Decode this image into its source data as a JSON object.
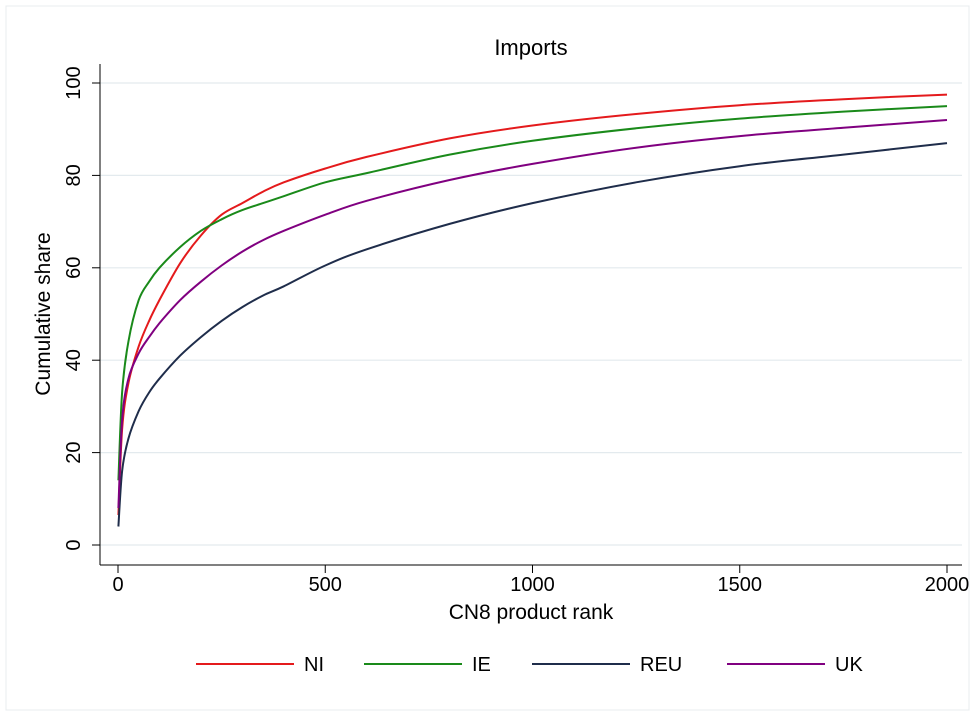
{
  "chart_data": {
    "type": "line",
    "title": "Imports",
    "xlabel": "CN8 product rank",
    "ylabel": "Cumulative share",
    "xlim": [
      0,
      2000
    ],
    "ylim": [
      0,
      100
    ],
    "xticks": [
      0,
      500,
      1000,
      1500,
      2000
    ],
    "yticks": [
      0,
      20,
      40,
      60,
      80,
      100
    ],
    "grid": "horizontal",
    "legend_position": "bottom",
    "x": [
      1,
      10,
      25,
      50,
      75,
      100,
      150,
      200,
      250,
      300,
      350,
      400,
      500,
      600,
      800,
      1000,
      1250,
      1500,
      1750,
      2000
    ],
    "series": [
      {
        "name": "NI",
        "color": "#e41a1c",
        "values": [
          6.5,
          25,
          35,
          43,
          48.5,
          53,
          61,
          67,
          71.5,
          74,
          76.5,
          78.5,
          81.5,
          84,
          88,
          90.8,
          93.3,
          95.2,
          96.5,
          97.5
        ]
      },
      {
        "name": "IE",
        "color": "#1a8a1a",
        "values": [
          14,
          33,
          44,
          53,
          57,
          60,
          64.5,
          68,
          70.5,
          72.5,
          74,
          75.5,
          78.5,
          80.5,
          84.5,
          87.5,
          90.2,
          92.3,
          93.8,
          95
        ]
      },
      {
        "name": "REU",
        "color": "#1f2d4b",
        "values": [
          4,
          16,
          23,
          29,
          33,
          36,
          41,
          45,
          48.5,
          51.5,
          54,
          56,
          60.5,
          64,
          69.5,
          74,
          78.5,
          82,
          84.5,
          87
        ]
      },
      {
        "name": "UK",
        "color": "#800080",
        "values": [
          8,
          27,
          36,
          41.5,
          45,
          48,
          53,
          57,
          60.5,
          63.5,
          66,
          68,
          71.5,
          74.5,
          79,
          82.5,
          86,
          88.5,
          90.3,
          92
        ]
      }
    ]
  }
}
